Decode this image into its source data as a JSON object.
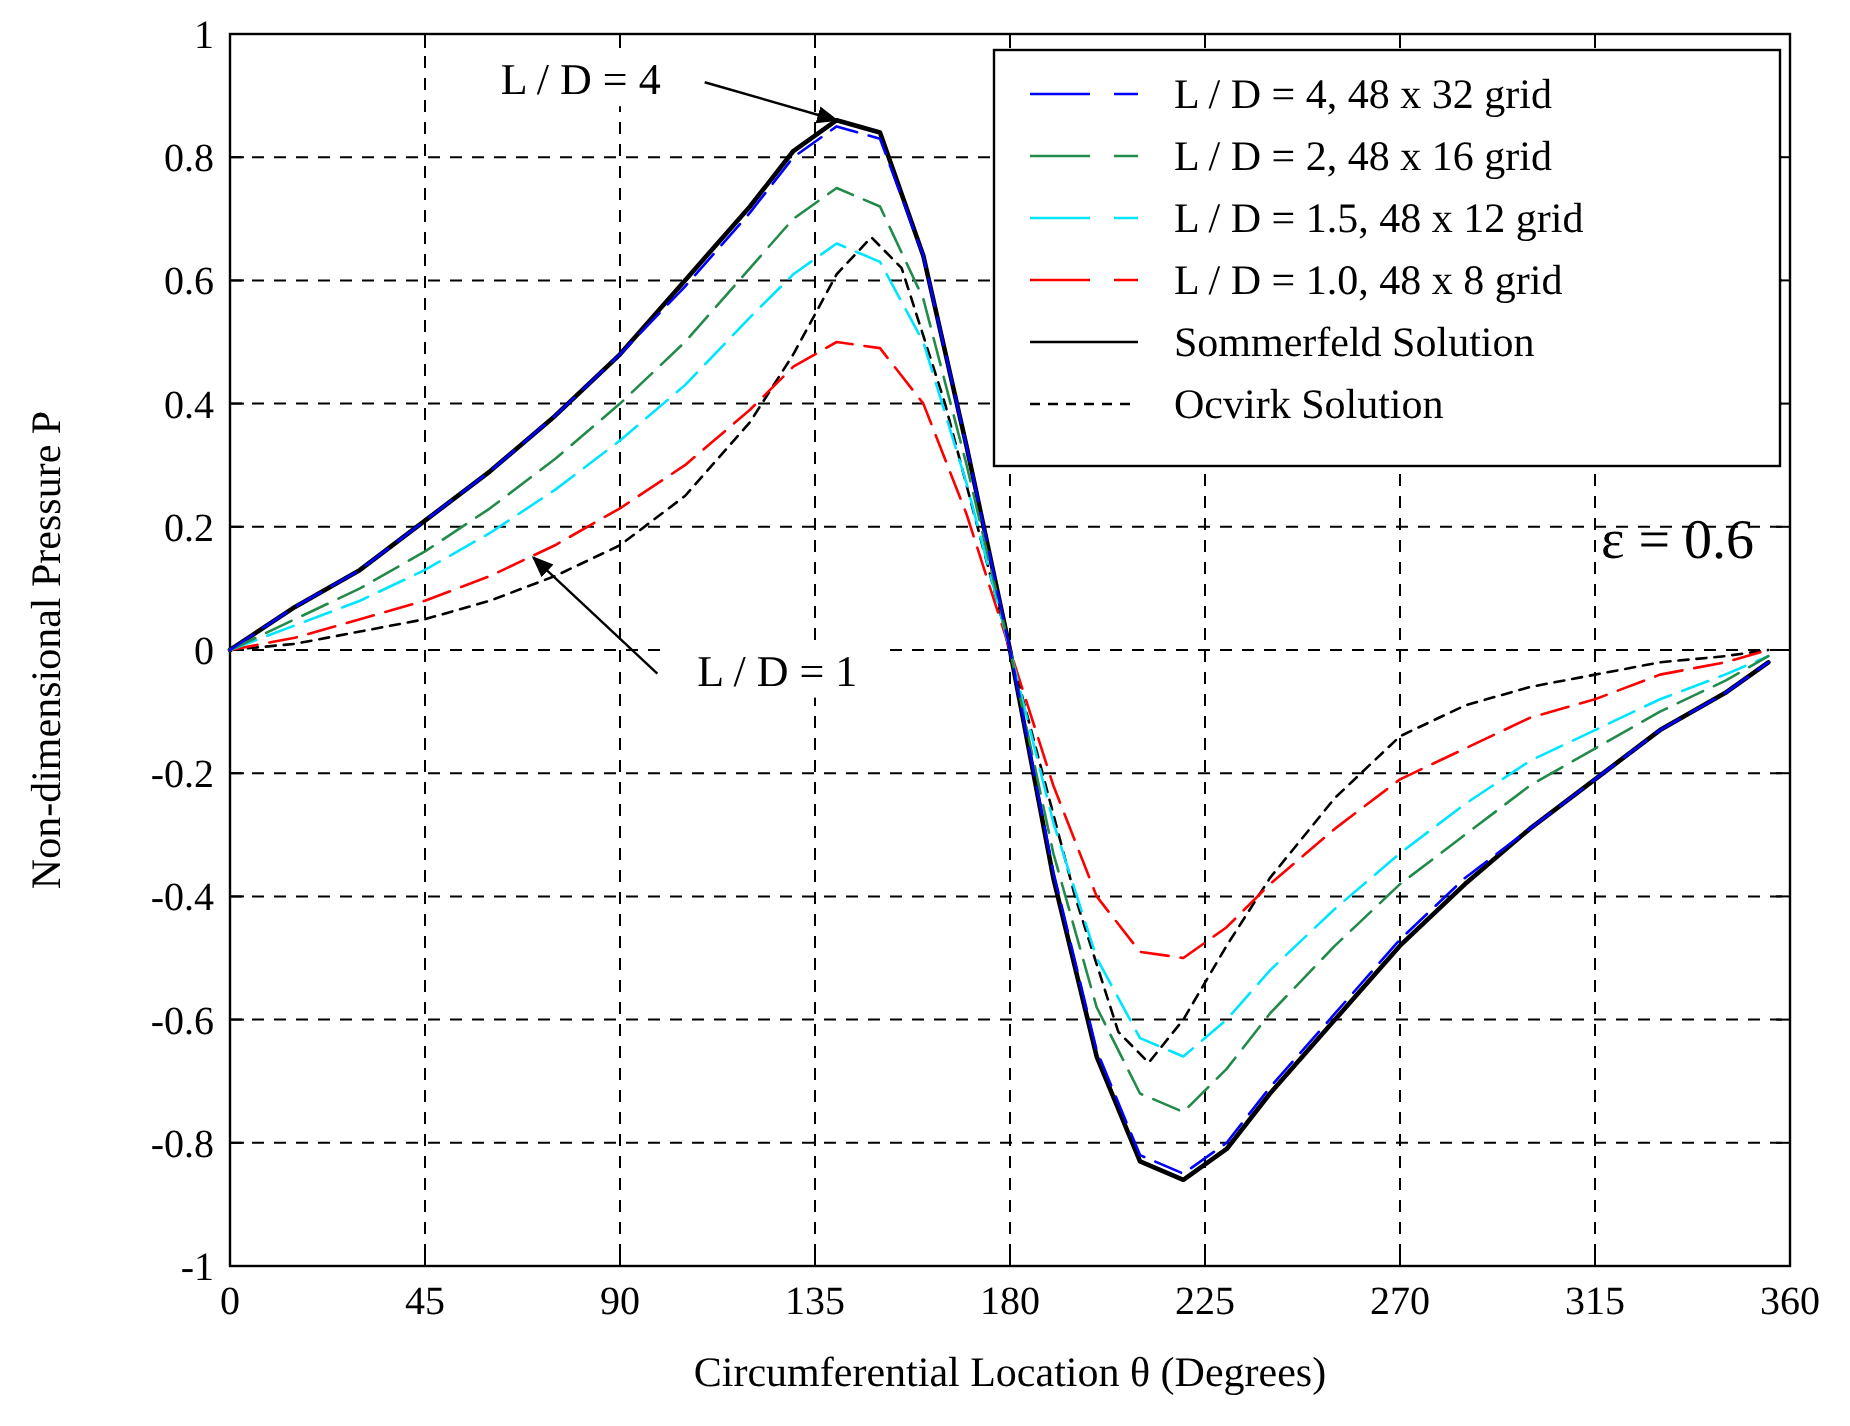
{
  "chart_data": {
    "type": "line",
    "xlabel": "Circumferential Location θ (Degrees)",
    "ylabel": "Non-dimensional Pressure P",
    "x": [
      0,
      15,
      30,
      45,
      60,
      75,
      90,
      105,
      120,
      130,
      140,
      150,
      160,
      170,
      180,
      190,
      200,
      210,
      220,
      230,
      240,
      255,
      270,
      285,
      300,
      315,
      330,
      345,
      355
    ],
    "series": [
      {
        "name": "L / D = 4, 48 x 32 grid",
        "color": "#0000ff",
        "line_style": "dashed",
        "values": [
          0,
          0.07,
          0.13,
          0.21,
          0.29,
          0.38,
          0.48,
          0.59,
          0.71,
          0.8,
          0.85,
          0.83,
          0.64,
          0.33,
          0,
          -0.36,
          -0.65,
          -0.82,
          -0.85,
          -0.8,
          -0.71,
          -0.59,
          -0.47,
          -0.37,
          -0.29,
          -0.21,
          -0.13,
          -0.07,
          -0.02
        ]
      },
      {
        "name": "L / D = 2, 48 x 16 grid",
        "color": "#228b4a",
        "line_style": "dashed",
        "values": [
          0,
          0.05,
          0.1,
          0.16,
          0.23,
          0.31,
          0.4,
          0.5,
          0.62,
          0.7,
          0.75,
          0.72,
          0.57,
          0.3,
          0,
          -0.33,
          -0.58,
          -0.72,
          -0.75,
          -0.68,
          -0.59,
          -0.48,
          -0.38,
          -0.3,
          -0.22,
          -0.16,
          -0.1,
          -0.05,
          -0.01
        ]
      },
      {
        "name": "L / D = 1.5, 48 x 12 grid",
        "color": "#00e5ff",
        "line_style": "dashed",
        "values": [
          0,
          0.04,
          0.08,
          0.13,
          0.19,
          0.26,
          0.34,
          0.43,
          0.54,
          0.61,
          0.66,
          0.63,
          0.5,
          0.27,
          0,
          -0.28,
          -0.5,
          -0.63,
          -0.66,
          -0.6,
          -0.52,
          -0.42,
          -0.33,
          -0.25,
          -0.18,
          -0.13,
          -0.08,
          -0.04,
          -0.01
        ]
      },
      {
        "name": "L / D = 1.0, 48 x 8 grid",
        "color": "#ff0000",
        "line_style": "dashed",
        "values": [
          0,
          0.02,
          0.05,
          0.08,
          0.12,
          0.17,
          0.23,
          0.3,
          0.39,
          0.46,
          0.5,
          0.49,
          0.4,
          0.22,
          0,
          -0.22,
          -0.4,
          -0.49,
          -0.5,
          -0.45,
          -0.38,
          -0.29,
          -0.21,
          -0.16,
          -0.11,
          -0.08,
          -0.04,
          -0.02,
          0
        ]
      },
      {
        "name": "Sommerfeld Solution",
        "color": "#000000",
        "line_style": "solid",
        "values": [
          0,
          0.07,
          0.13,
          0.21,
          0.29,
          0.38,
          0.48,
          0.6,
          0.72,
          0.81,
          0.86,
          0.84,
          0.64,
          0.33,
          0,
          -0.37,
          -0.66,
          -0.83,
          -0.86,
          -0.81,
          -0.72,
          -0.6,
          -0.48,
          -0.38,
          -0.29,
          -0.21,
          -0.13,
          -0.07,
          -0.02
        ]
      },
      {
        "name": "Ocvirk Solution",
        "color": "#000000",
        "line_style": "dotted",
        "x": [
          0,
          15,
          30,
          45,
          60,
          75,
          90,
          105,
          120,
          130,
          140,
          148,
          155,
          165,
          180,
          195,
          205,
          212,
          220,
          230,
          240,
          255,
          270,
          285,
          300,
          315,
          330,
          345,
          355
        ],
        "values": [
          0,
          0.01,
          0.03,
          0.05,
          0.08,
          0.12,
          0.17,
          0.25,
          0.37,
          0.48,
          0.61,
          0.67,
          0.62,
          0.4,
          0,
          -0.4,
          -0.62,
          -0.67,
          -0.6,
          -0.48,
          -0.37,
          -0.24,
          -0.14,
          -0.09,
          -0.06,
          -0.04,
          -0.02,
          -0.01,
          0
        ]
      }
    ],
    "xlim": [
      0,
      360
    ],
    "xticks": [
      0,
      45,
      90,
      135,
      180,
      225,
      270,
      315,
      360
    ],
    "ylim": [
      -1,
      1
    ],
    "yticks": [
      -1,
      -0.8,
      -0.6,
      -0.4,
      -0.2,
      0,
      0.2,
      0.4,
      0.6,
      0.8,
      1
    ],
    "grid": true,
    "legend": "top right",
    "annotations": [
      {
        "text": "L / D = 4",
        "x": 140,
        "y": 0.86
      },
      {
        "text": "L / D = 1",
        "x": 70,
        "y": 0.15
      },
      "ε = 0.6"
    ]
  }
}
